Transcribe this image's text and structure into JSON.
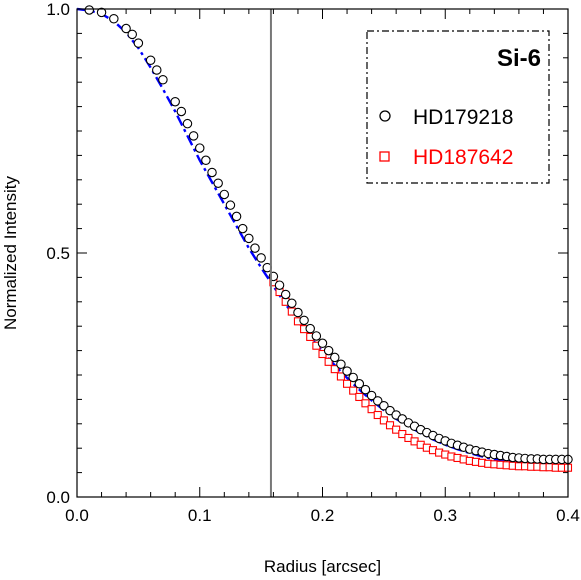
{
  "chart_data": {
    "type": "scatter",
    "xlabel": "Radius [arcsec]",
    "ylabel": "Normalized Intensity",
    "xlim": [
      0.0,
      0.4
    ],
    "ylim": [
      0.0,
      1.0
    ],
    "x_ticks": [
      {
        "value": 0.0,
        "label": "0.0"
      },
      {
        "value": 0.1,
        "label": "0.1"
      },
      {
        "value": 0.2,
        "label": "0.2"
      },
      {
        "value": 0.3,
        "label": "0.3"
      },
      {
        "value": 0.4,
        "label": "0.4"
      }
    ],
    "y_ticks": [
      {
        "value": 0.0,
        "label": "0.0"
      },
      {
        "value": 0.5,
        "label": "0.5"
      },
      {
        "value": 1.0,
        "label": "1.0"
      }
    ],
    "legend": {
      "title": "Si-6",
      "position": "top-right",
      "entries": [
        {
          "name": "HD179218",
          "marker": "circle",
          "color": "#000000"
        },
        {
          "name": "HD187642",
          "marker": "square",
          "color": "#ff0000"
        }
      ]
    },
    "reference_line": {
      "x": 0.158,
      "color": "#777777"
    },
    "model_curve": {
      "color": "#0000ff",
      "style": "dash-dot",
      "x": [
        0.0,
        0.01,
        0.02,
        0.03,
        0.04,
        0.05,
        0.06,
        0.07,
        0.08,
        0.09,
        0.1,
        0.11,
        0.12,
        0.13,
        0.14,
        0.15,
        0.16,
        0.17,
        0.18,
        0.19,
        0.2,
        0.21,
        0.22,
        0.23,
        0.24,
        0.25,
        0.26,
        0.27,
        0.28,
        0.29,
        0.3,
        0.31,
        0.32,
        0.33,
        0.34,
        0.35,
        0.36,
        0.37,
        0.38,
        0.39,
        0.4
      ],
      "y": [
        1.0,
        0.997,
        0.99,
        0.975,
        0.952,
        0.92,
        0.88,
        0.836,
        0.79,
        0.74,
        0.69,
        0.645,
        0.6,
        0.555,
        0.51,
        0.47,
        0.432,
        0.395,
        0.36,
        0.328,
        0.298,
        0.27,
        0.244,
        0.22,
        0.198,
        0.178,
        0.16,
        0.145,
        0.131,
        0.118,
        0.107,
        0.098,
        0.09,
        0.083,
        0.077,
        0.073,
        0.07,
        0.068,
        0.067,
        0.066,
        0.065
      ]
    },
    "series": [
      {
        "name": "HD179218",
        "marker": "circle",
        "color": "#000000",
        "x": [
          0.01,
          0.02,
          0.03,
          0.04,
          0.045,
          0.05,
          0.06,
          0.065,
          0.07,
          0.08,
          0.085,
          0.09,
          0.095,
          0.1,
          0.105,
          0.11,
          0.115,
          0.12,
          0.125,
          0.13,
          0.135,
          0.14,
          0.145,
          0.15,
          0.155,
          0.16,
          0.165,
          0.17,
          0.175,
          0.18,
          0.185,
          0.19,
          0.195,
          0.2,
          0.205,
          0.21,
          0.215,
          0.22,
          0.225,
          0.23,
          0.235,
          0.24,
          0.245,
          0.25,
          0.255,
          0.26,
          0.265,
          0.27,
          0.275,
          0.28,
          0.285,
          0.29,
          0.295,
          0.3,
          0.305,
          0.31,
          0.315,
          0.32,
          0.325,
          0.33,
          0.335,
          0.34,
          0.345,
          0.35,
          0.355,
          0.36,
          0.365,
          0.37,
          0.375,
          0.38,
          0.385,
          0.39,
          0.395,
          0.4
        ],
        "y": [
          0.998,
          0.993,
          0.98,
          0.96,
          0.948,
          0.93,
          0.895,
          0.875,
          0.855,
          0.81,
          0.79,
          0.765,
          0.74,
          0.715,
          0.69,
          0.665,
          0.643,
          0.62,
          0.598,
          0.575,
          0.55,
          0.53,
          0.51,
          0.49,
          0.47,
          0.452,
          0.434,
          0.415,
          0.397,
          0.378,
          0.362,
          0.345,
          0.33,
          0.315,
          0.3,
          0.286,
          0.272,
          0.258,
          0.245,
          0.232,
          0.22,
          0.208,
          0.197,
          0.187,
          0.177,
          0.168,
          0.16,
          0.152,
          0.145,
          0.138,
          0.132,
          0.126,
          0.12,
          0.115,
          0.11,
          0.106,
          0.102,
          0.098,
          0.095,
          0.092,
          0.089,
          0.087,
          0.085,
          0.083,
          0.081,
          0.08,
          0.079,
          0.078,
          0.078,
          0.077,
          0.077,
          0.077,
          0.077,
          0.077
        ]
      },
      {
        "name": "HD187642",
        "marker": "square",
        "color": "#ff0000",
        "x": [
          0.16,
          0.165,
          0.17,
          0.175,
          0.18,
          0.185,
          0.19,
          0.195,
          0.2,
          0.205,
          0.21,
          0.215,
          0.22,
          0.225,
          0.23,
          0.235,
          0.24,
          0.245,
          0.25,
          0.255,
          0.26,
          0.265,
          0.27,
          0.275,
          0.28,
          0.285,
          0.29,
          0.295,
          0.3,
          0.305,
          0.31,
          0.315,
          0.32,
          0.325,
          0.33,
          0.335,
          0.34,
          0.345,
          0.35,
          0.355,
          0.36,
          0.365,
          0.37,
          0.375,
          0.38,
          0.385,
          0.39,
          0.395,
          0.4
        ],
        "y": [
          0.44,
          0.42,
          0.4,
          0.38,
          0.36,
          0.344,
          0.328,
          0.31,
          0.293,
          0.277,
          0.262,
          0.247,
          0.232,
          0.218,
          0.205,
          0.192,
          0.18,
          0.168,
          0.157,
          0.147,
          0.138,
          0.129,
          0.121,
          0.114,
          0.107,
          0.101,
          0.096,
          0.091,
          0.087,
          0.083,
          0.08,
          0.077,
          0.074,
          0.072,
          0.07,
          0.068,
          0.067,
          0.066,
          0.065,
          0.064,
          0.063,
          0.063,
          0.062,
          0.062,
          0.061,
          0.061,
          0.06,
          0.06,
          0.06
        ]
      }
    ]
  }
}
